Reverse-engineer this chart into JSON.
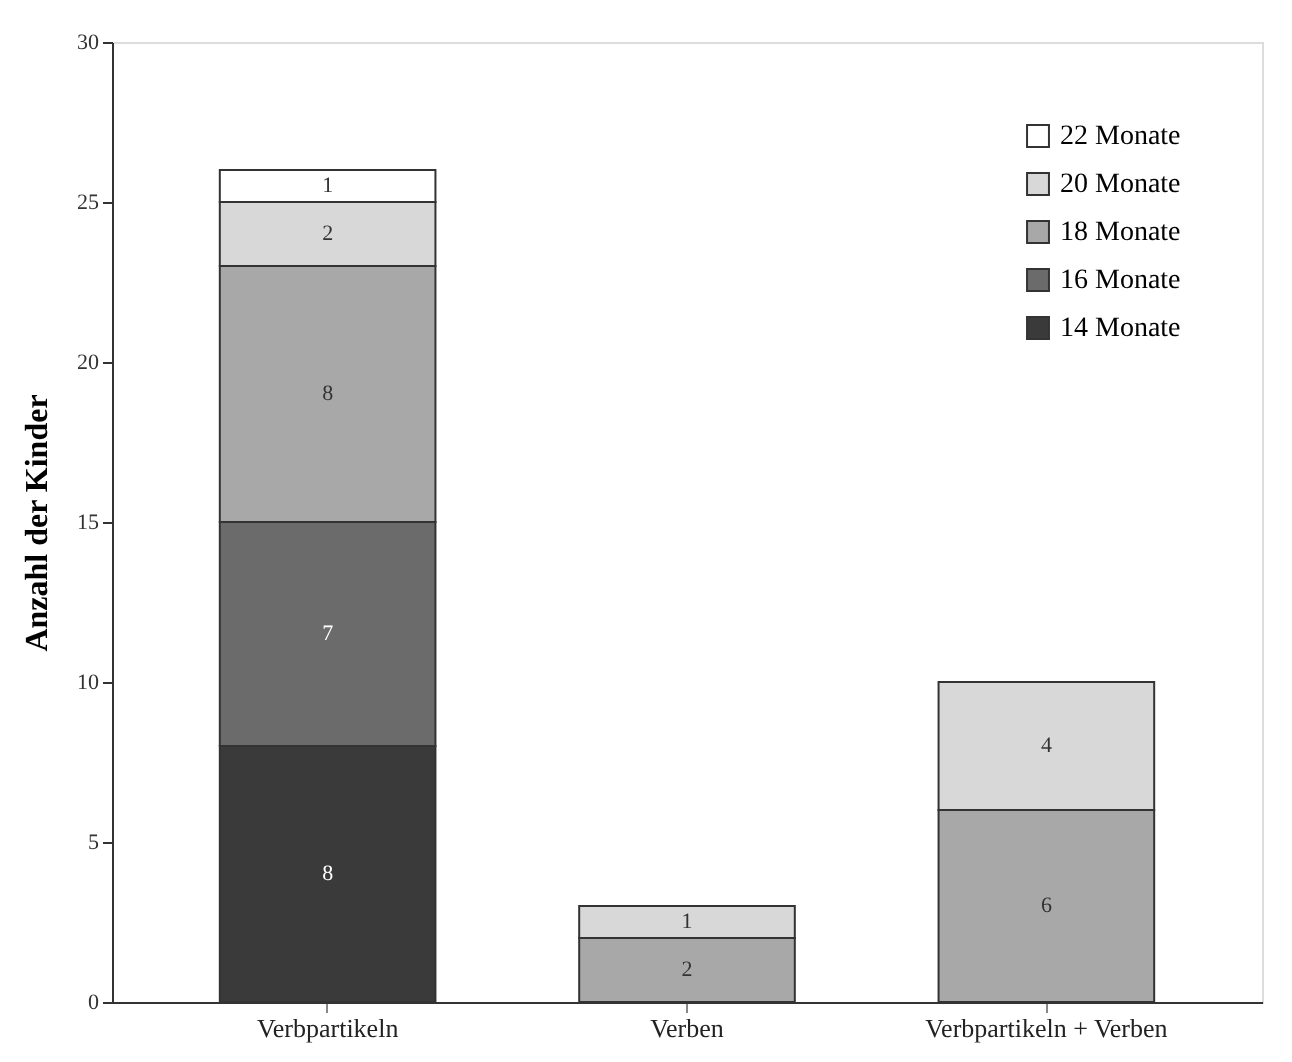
{
  "chart_data": {
    "type": "bar",
    "stacked": true,
    "ylabel": "Anzahl der Kinder",
    "categories": [
      "Verbpartikeln",
      "Verben",
      "Verbpartikeln + Verben"
    ],
    "series": [
      {
        "name": "14 Monate",
        "color": "#3a3a3a",
        "values": [
          8,
          null,
          null
        ]
      },
      {
        "name": "16 Monate",
        "color": "#6b6b6b",
        "values": [
          7,
          null,
          null
        ]
      },
      {
        "name": "18 Monate",
        "color": "#a8a8a8",
        "values": [
          8,
          2,
          6
        ]
      },
      {
        "name": "20 Monate",
        "color": "#d8d8d8",
        "values": [
          2,
          1,
          4
        ]
      },
      {
        "name": "22 Monate",
        "color": "#ffffff",
        "values": [
          1,
          null,
          null
        ]
      }
    ],
    "ylim": [
      0,
      30
    ],
    "yticks": [
      0,
      5,
      10,
      15,
      20,
      25,
      30
    ],
    "data_labels": true,
    "legend": "top right",
    "grid": false
  }
}
